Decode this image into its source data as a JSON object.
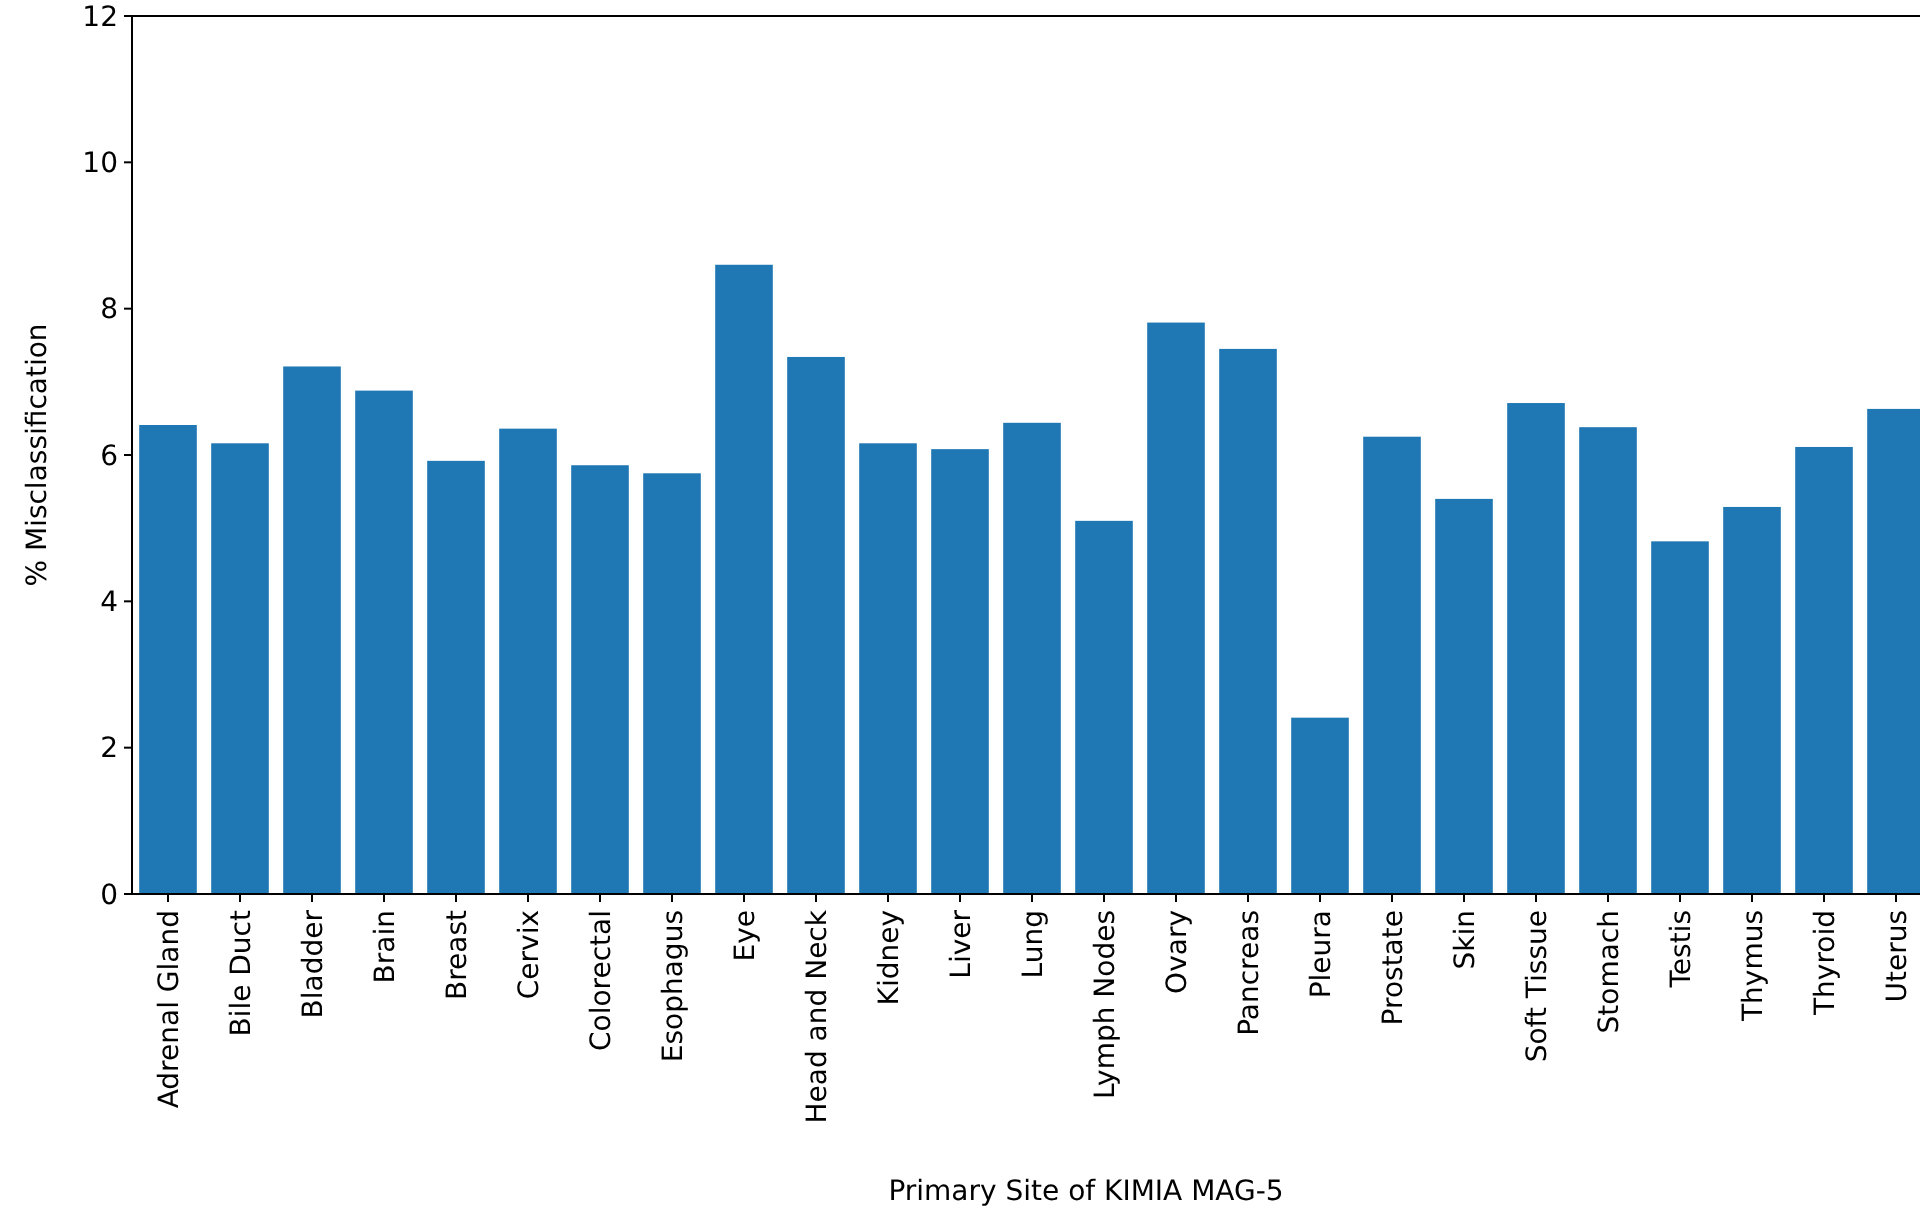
{
  "chart_data": {
    "type": "bar",
    "xlabel": "Primary Site of KIMIA MAG-5",
    "ylabel": "% Misclassification",
    "categories": [
      "Adrenal Gland",
      "Bile Duct",
      "Bladder",
      "Brain",
      "Breast",
      "Cervix",
      "Colorectal",
      "Esophagus",
      "Eye",
      "Head and Neck",
      "Kidney",
      "Liver",
      "Lung",
      "Lymph Nodes",
      "Ovary",
      "Pancreas",
      "Pleura",
      "Prostate",
      "Skin",
      "Soft Tissue",
      "Stomach",
      "Testis",
      "Thymus",
      "Thyroid",
      "Uterus"
    ],
    "values": [
      6.41,
      6.16,
      7.21,
      6.88,
      5.92,
      6.36,
      5.86,
      5.75,
      8.6,
      7.34,
      6.16,
      6.08,
      6.44,
      5.1,
      7.81,
      7.45,
      2.41,
      6.25,
      5.4,
      6.71,
      6.38,
      4.82,
      5.29,
      6.11,
      6.63
    ],
    "color": "#1f77b4",
    "ylim": [
      0,
      12
    ],
    "yticks": [
      0,
      2,
      4,
      6,
      8,
      10,
      12
    ],
    "grid": false
  }
}
